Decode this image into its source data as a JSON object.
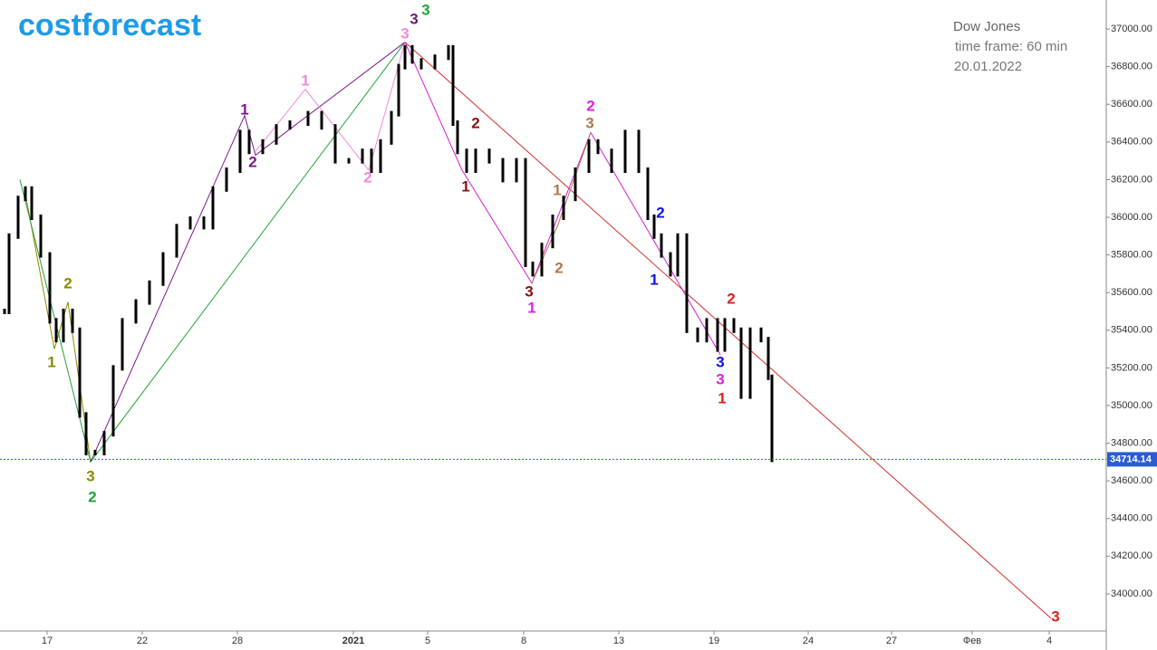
{
  "header": {
    "logo": "costforecast",
    "instrument": "Dow Jones",
    "timeframe": "time frame: 60 min",
    "date": "20.01.2022"
  },
  "chart_data": {
    "type": "candlestick",
    "xlim": [
      0,
      244.2
    ],
    "ylim": [
      33788,
      37154
    ],
    "xticks": [
      {
        "value": 10.4,
        "label": "17"
      },
      {
        "value": 31.4,
        "label": "22"
      },
      {
        "value": 52.4,
        "label": "28"
      },
      {
        "value": 78,
        "label": "2021"
      },
      {
        "value": 94.4,
        "label": "5"
      },
      {
        "value": 115.6,
        "label": "8"
      },
      {
        "value": 136.6,
        "label": "13"
      },
      {
        "value": 157.6,
        "label": "19"
      },
      {
        "value": 178.4,
        "label": "24"
      },
      {
        "value": 196.8,
        "label": "27"
      },
      {
        "value": 214.6,
        "label": "Фев"
      },
      {
        "value": 231.6,
        "label": "4"
      }
    ],
    "yticks": [
      {
        "value": 34000,
        "label": "34000.00"
      },
      {
        "value": 34200,
        "label": "34200.00"
      },
      {
        "value": 34400,
        "label": "34400.00"
      },
      {
        "value": 34600,
        "label": "34600.00"
      },
      {
        "value": 34800,
        "label": "34800.00"
      },
      {
        "value": 35000,
        "label": "35000.00"
      },
      {
        "value": 35200,
        "label": "35200.00"
      },
      {
        "value": 35400,
        "label": "35400.00"
      },
      {
        "value": 35600,
        "label": "35600.00"
      },
      {
        "value": 35800,
        "label": "35800.00"
      },
      {
        "value": 36000,
        "label": "36000.00"
      },
      {
        "value": 36200,
        "label": "36200.00"
      },
      {
        "value": 36400,
        "label": "36400.00"
      },
      {
        "value": 36600,
        "label": "36600.00"
      },
      {
        "value": 36800,
        "label": "36800.00"
      },
      {
        "value": 37000,
        "label": "37000.00"
      }
    ],
    "price": {
      "color": "#000000",
      "x": [
        1,
        2,
        4,
        5.6,
        7,
        9,
        11,
        12.4,
        14,
        16,
        17.6,
        19,
        21,
        23,
        25,
        27,
        30,
        33,
        36,
        39,
        42,
        45,
        47,
        50,
        53,
        55,
        58,
        61,
        64,
        68,
        71,
        74,
        77,
        80,
        82,
        84,
        86.4,
        88,
        89.4,
        91,
        93,
        96,
        99,
        100,
        101,
        103,
        105,
        108,
        111,
        114,
        116,
        117.6,
        119.6,
        122,
        124.4,
        127,
        130,
        132,
        135,
        138,
        141,
        143,
        144.4,
        146,
        148,
        149.6,
        151.6,
        154,
        156,
        158.4,
        160,
        162,
        163.6,
        165.6,
        168,
        169.6,
        170.4
      ],
      "values": [
        35500,
        35900,
        36100,
        36150,
        36000,
        35800,
        35450,
        35350,
        35500,
        35400,
        34950,
        34750,
        34750,
        34850,
        35200,
        35450,
        35550,
        35650,
        35800,
        35950,
        35990,
        35950,
        36150,
        36250,
        36450,
        36350,
        36400,
        36480,
        36500,
        36550,
        36480,
        36300,
        36300,
        36350,
        36250,
        36400,
        36550,
        36800,
        36900,
        36830,
        36800,
        36850,
        36900,
        36500,
        36350,
        36250,
        36350,
        36300,
        36200,
        36300,
        35750,
        35700,
        35850,
        36000,
        36100,
        36250,
        36400,
        36350,
        36250,
        36450,
        36250,
        36000,
        35900,
        35800,
        35700,
        35900,
        35400,
        35350,
        35450,
        35300,
        35450,
        35400,
        35050,
        35400,
        35350,
        35150,
        34714.14
      ]
    },
    "last_price": 34714.14,
    "last_price_color": "#2a5cd6",
    "wave_lines": [
      {
        "color": "#8a8a00",
        "x": [
          5.4,
          12,
          15,
          20
        ],
        "y": [
          36150,
          35300,
          35550,
          34700
        ]
      },
      {
        "color": "#22a33a",
        "x": [
          4.4,
          20,
          89.4
        ],
        "y": [
          36200,
          34700,
          36930
        ]
      },
      {
        "color": "#7a1a8a",
        "x": [
          20,
          54,
          56.4,
          89.4
        ],
        "y": [
          34700,
          36540,
          36330,
          36930
        ]
      },
      {
        "color": "#f08ad8",
        "x": [
          56.4,
          67.4,
          81.4,
          89.4
        ],
        "y": [
          36350,
          36680,
          36250,
          36930
        ]
      },
      {
        "color": "#d03030",
        "x": [
          89.4,
          232
        ],
        "y": [
          36930,
          33870
        ]
      },
      {
        "color": "#d020d0",
        "x": [
          89.4,
          102,
          117.4,
          130.4,
          159
        ],
        "y": [
          36930,
          36250,
          35650,
          36450,
          35270
        ]
      },
      {
        "color": "#b07850",
        "x": [
          117.4,
          123,
          130.4
        ],
        "y": [
          35650,
          35950,
          36450
        ]
      }
    ],
    "annotations": [
      {
        "text": "3",
        "color": "#22a33a",
        "x": 94,
        "y": 37096
      },
      {
        "text": "3",
        "color": "#6a1a7a",
        "x": 91.4,
        "y": 37048
      },
      {
        "text": "3",
        "color": "#f08ad8",
        "x": 89.4,
        "y": 36971
      },
      {
        "text": "1",
        "color": "#7a1a8a",
        "x": 54,
        "y": 36567
      },
      {
        "text": "2",
        "color": "#7a1a8a",
        "x": 55.8,
        "y": 36288
      },
      {
        "text": "1",
        "color": "#f08ad8",
        "x": 67.4,
        "y": 36721
      },
      {
        "text": "2",
        "color": "#f08ad8",
        "x": 81.2,
        "y": 36207
      },
      {
        "text": "2",
        "color": "#8a8a00",
        "x": 15,
        "y": 35644
      },
      {
        "text": "1",
        "color": "#8a8a00",
        "x": 11.4,
        "y": 35226
      },
      {
        "text": "3",
        "color": "#8a8a00",
        "x": 20,
        "y": 34620
      },
      {
        "text": "2",
        "color": "#22a33a",
        "x": 20.4,
        "y": 34510
      },
      {
        "text": "2",
        "color": "#8b1010",
        "x": 105,
        "y": 36495
      },
      {
        "text": "1",
        "color": "#8b1010",
        "x": 102.8,
        "y": 36159
      },
      {
        "text": "3",
        "color": "#8b1010",
        "x": 116.8,
        "y": 35601
      },
      {
        "text": "1",
        "color": "#e020e0",
        "x": 117.4,
        "y": 35514
      },
      {
        "text": "2",
        "color": "#e020e0",
        "x": 130.4,
        "y": 36587
      },
      {
        "text": "3",
        "color": "#b07850",
        "x": 130.2,
        "y": 36495
      },
      {
        "text": "1",
        "color": "#b07850",
        "x": 123,
        "y": 36139
      },
      {
        "text": "2",
        "color": "#b07850",
        "x": 123.4,
        "y": 35726
      },
      {
        "text": "2",
        "color": "#1010e0",
        "x": 145.8,
        "y": 36019
      },
      {
        "text": "1",
        "color": "#1010e0",
        "x": 144.4,
        "y": 35663
      },
      {
        "text": "3",
        "color": "#1010e0",
        "x": 159,
        "y": 35226
      },
      {
        "text": "3",
        "color": "#e020e0",
        "x": 159,
        "y": 35135
      },
      {
        "text": "1",
        "color": "#e02020",
        "x": 159.4,
        "y": 35034
      },
      {
        "text": "2",
        "color": "#e02020",
        "x": 161.4,
        "y": 35562
      },
      {
        "text": "3",
        "color": "#e02020",
        "x": 233,
        "y": 33875
      }
    ]
  }
}
